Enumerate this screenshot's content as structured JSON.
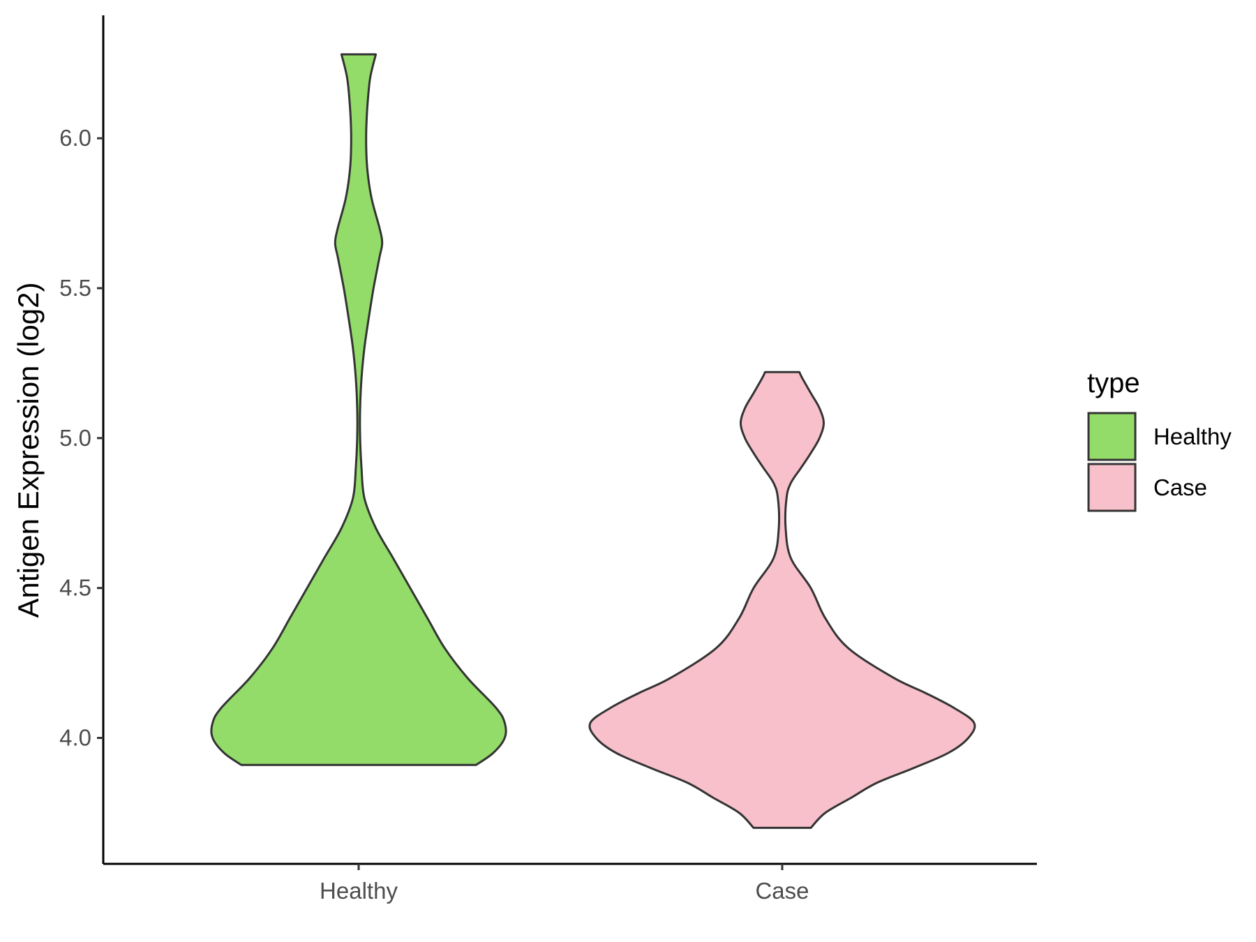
{
  "chart_data": {
    "type": "violin",
    "ylabel": "Antigen Expression (log2)",
    "xlabel": "",
    "categories": [
      "Healthy",
      "Case"
    ],
    "yticks": [
      "4.0",
      "4.5",
      "5.0",
      "5.5",
      "6.0"
    ],
    "ylim": [
      3.58,
      6.41
    ],
    "grid": false,
    "legend": {
      "title": "type",
      "position": "right",
      "entries": [
        "Healthy",
        "Case"
      ]
    },
    "series": [
      {
        "name": "Healthy",
        "color": "#93dc6a",
        "range": [
          3.91,
          6.28
        ],
        "density_profile": [
          [
            3.91,
            0.41
          ],
          [
            3.95,
            0.47
          ],
          [
            4.0,
            0.51
          ],
          [
            4.05,
            0.51
          ],
          [
            4.1,
            0.48
          ],
          [
            4.2,
            0.38
          ],
          [
            4.3,
            0.3
          ],
          [
            4.4,
            0.24
          ],
          [
            4.5,
            0.18
          ],
          [
            4.6,
            0.12
          ],
          [
            4.7,
            0.06
          ],
          [
            4.8,
            0.02
          ],
          [
            4.9,
            0.01
          ],
          [
            5.0,
            0.005
          ],
          [
            5.1,
            0.005
          ],
          [
            5.2,
            0.01
          ],
          [
            5.3,
            0.02
          ],
          [
            5.4,
            0.035
          ],
          [
            5.5,
            0.052
          ],
          [
            5.6,
            0.072
          ],
          [
            5.65,
            0.082
          ],
          [
            5.7,
            0.073
          ],
          [
            5.8,
            0.045
          ],
          [
            5.9,
            0.03
          ],
          [
            6.0,
            0.026
          ],
          [
            6.1,
            0.03
          ],
          [
            6.2,
            0.04
          ],
          [
            6.28,
            0.06
          ]
        ]
      },
      {
        "name": "Case",
        "color": "#f8c0cb",
        "range": [
          3.7,
          5.22
        ],
        "density_profile": [
          [
            3.7,
            0.1
          ],
          [
            3.75,
            0.15
          ],
          [
            3.8,
            0.24
          ],
          [
            3.85,
            0.33
          ],
          [
            3.9,
            0.46
          ],
          [
            3.95,
            0.58
          ],
          [
            4.0,
            0.65
          ],
          [
            4.05,
            0.67
          ],
          [
            4.1,
            0.6
          ],
          [
            4.15,
            0.5
          ],
          [
            4.2,
            0.39
          ],
          [
            4.3,
            0.23
          ],
          [
            4.4,
            0.15
          ],
          [
            4.5,
            0.1
          ],
          [
            4.6,
            0.03
          ],
          [
            4.7,
            0.012
          ],
          [
            4.8,
            0.015
          ],
          [
            4.85,
            0.03
          ],
          [
            4.9,
            0.065
          ],
          [
            4.95,
            0.1
          ],
          [
            5.0,
            0.13
          ],
          [
            5.05,
            0.145
          ],
          [
            5.1,
            0.13
          ],
          [
            5.15,
            0.1
          ],
          [
            5.2,
            0.07
          ],
          [
            5.22,
            0.06
          ]
        ]
      }
    ]
  }
}
